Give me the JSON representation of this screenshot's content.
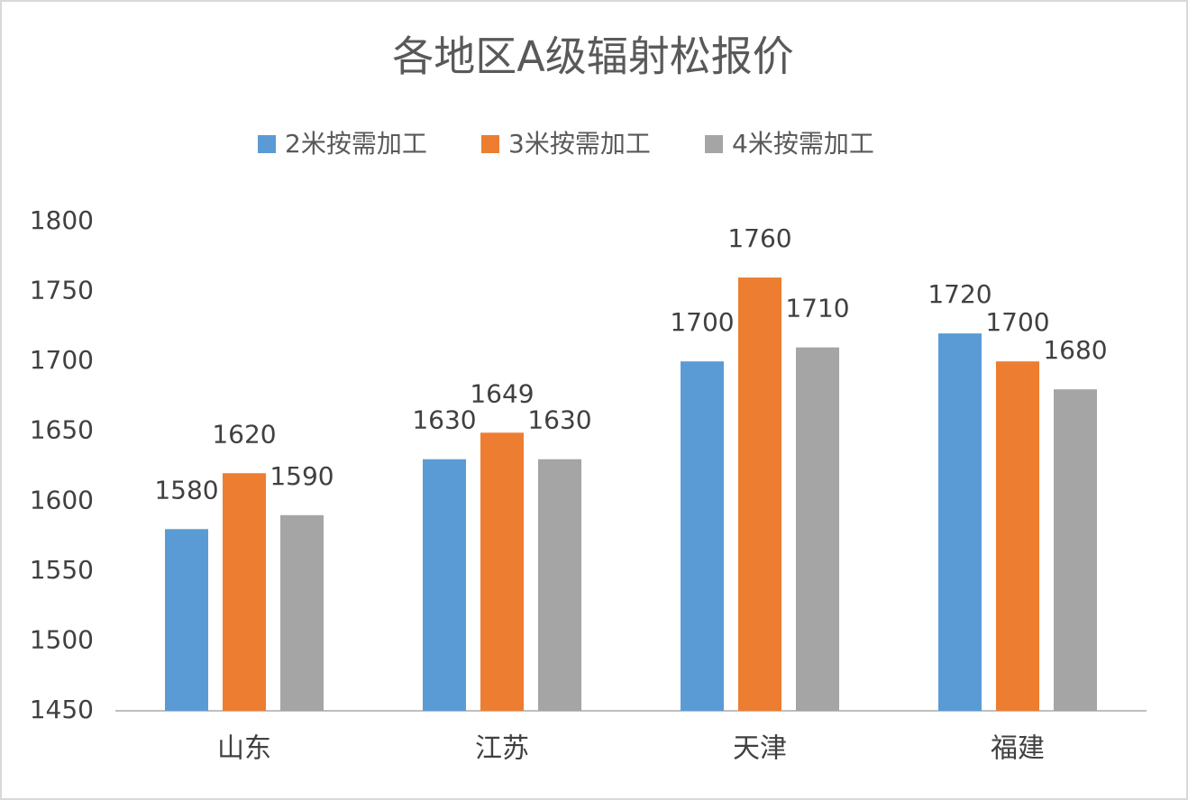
{
  "chart_data": {
    "type": "bar",
    "title": "各地区A级辐射松报价",
    "categories": [
      "山东",
      "江苏",
      "天津",
      "福建"
    ],
    "series": [
      {
        "name": "2米按需加工",
        "color": "#5b9bd5",
        "values": [
          1580,
          1630,
          1700,
          1720
        ]
      },
      {
        "name": "3米按需加工",
        "color": "#ed7d31",
        "values": [
          1620,
          1649,
          1760,
          1700
        ]
      },
      {
        "name": "4米按需加工",
        "color": "#a5a5a5",
        "values": [
          1590,
          1630,
          1710,
          1680
        ]
      }
    ],
    "ylim": [
      1450,
      1800
    ],
    "yticks": [
      1450,
      1500,
      1550,
      1600,
      1650,
      1700,
      1750,
      1800
    ],
    "grid": false,
    "legend": "top"
  }
}
